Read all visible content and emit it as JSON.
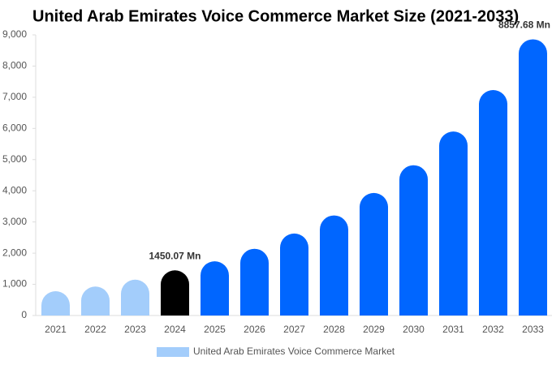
{
  "chart_data": {
    "type": "bar",
    "title": "United Arab Emirates Voice Commerce Market Size (2021-2033)",
    "categories": [
      "2021",
      "2022",
      "2023",
      "2024",
      "2025",
      "2026",
      "2027",
      "2028",
      "2029",
      "2030",
      "2031",
      "2032",
      "2033"
    ],
    "series": [
      {
        "name": "United Arab Emirates Voice Commerce Market",
        "color": "#a3cdfb",
        "colors": [
          "#a3cdfb",
          "#a3cdfb",
          "#a3cdfb",
          "#000000",
          "#0066ff",
          "#0066ff",
          "#0066ff",
          "#0066ff",
          "#0066ff",
          "#0066ff",
          "#0066ff",
          "#0066ff",
          "#0066ff"
        ],
        "values": [
          780,
          930,
          1150,
          1450.07,
          1740,
          2140,
          2630,
          3210,
          3930,
          4820,
          5900,
          7230,
          8857.68
        ],
        "value_labels": [
          null,
          null,
          null,
          "1450.07 Mn",
          null,
          null,
          null,
          null,
          null,
          null,
          null,
          null,
          "8857.68 Mn"
        ]
      }
    ],
    "ylim": [
      0,
      9000
    ],
    "yticks": [
      0,
      {
        "value": 1000,
        "label": "1,000"
      },
      {
        "value": 2000,
        "label": "2,000"
      },
      {
        "value": 3000,
        "label": "3,000"
      },
      {
        "value": 4000,
        "label": "4,000"
      },
      {
        "value": 5000,
        "label": "5,000"
      },
      {
        "value": 6000,
        "label": "6,000"
      },
      {
        "value": 7000,
        "label": "7,000"
      },
      {
        "value": 8000,
        "label": "8,000"
      },
      {
        "value": 9000,
        "label": "9,000"
      }
    ],
    "grid": false
  }
}
